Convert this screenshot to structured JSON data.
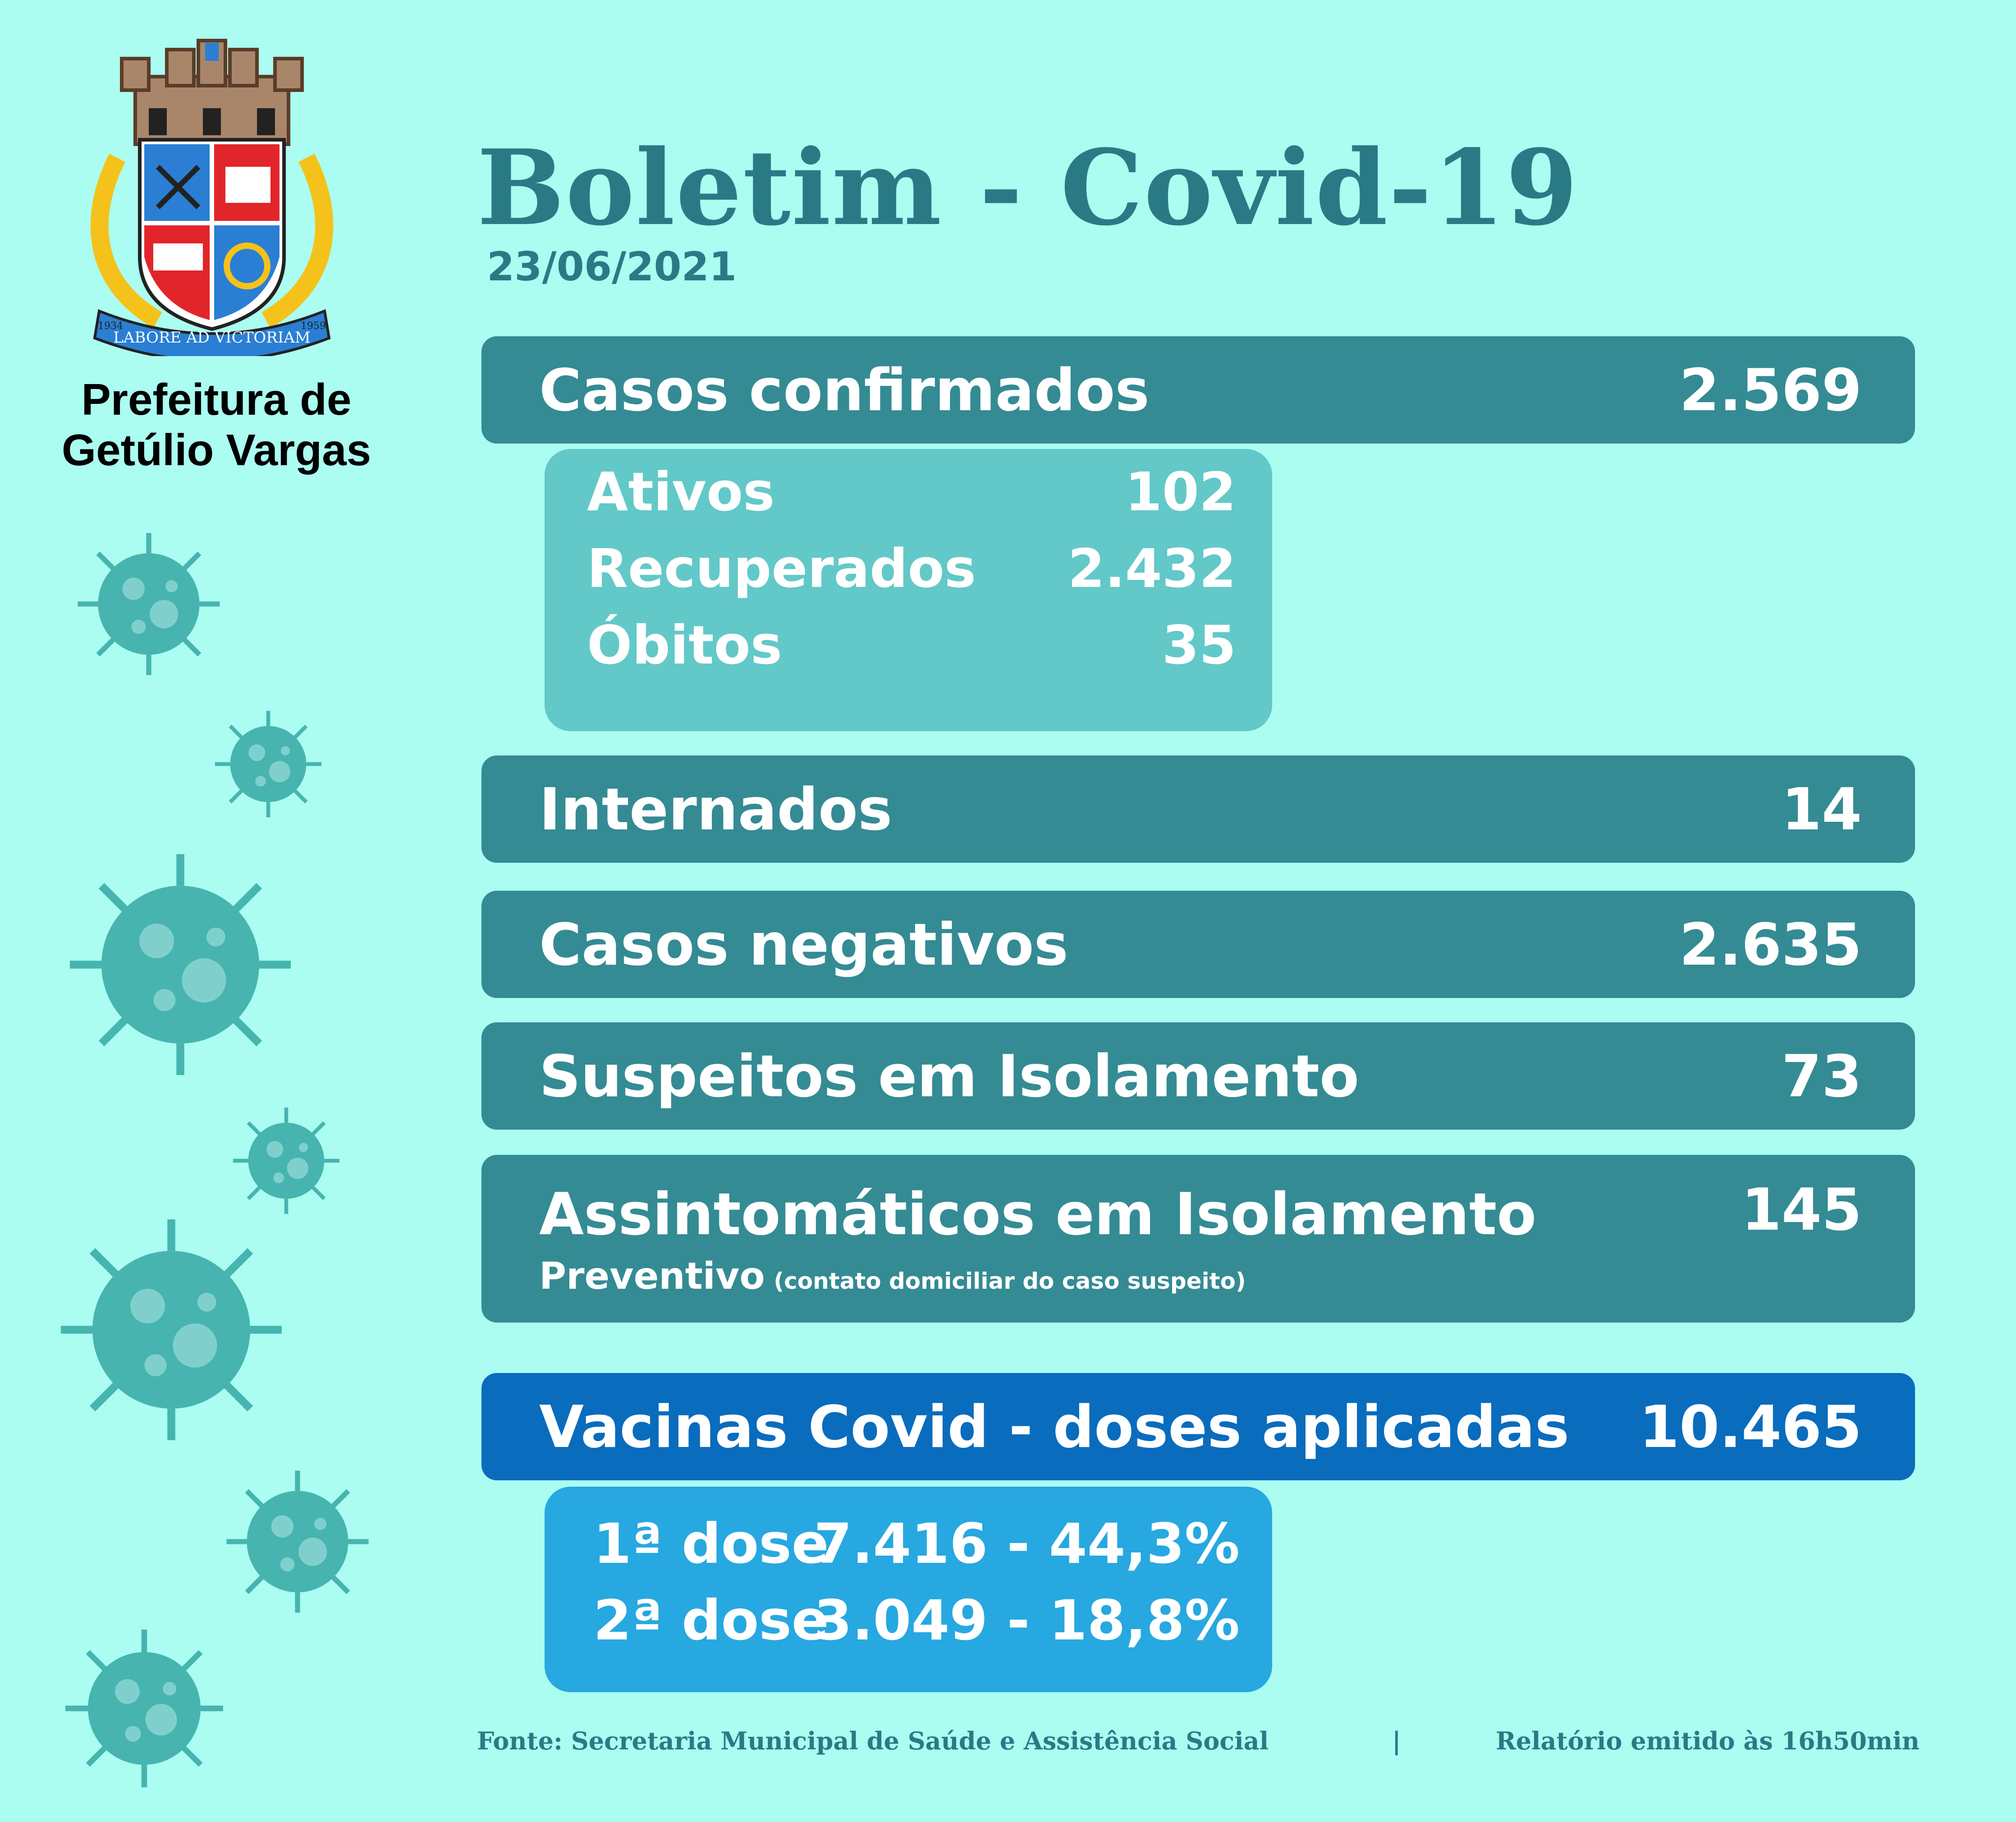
{
  "header": {
    "title": "Boletim - Covid-19",
    "date": "23/06/2021",
    "organization_line1": "Prefeitura de",
    "organization_line2": "Getúlio Vargas"
  },
  "crest": {
    "motto": "LABORE AD VICTORIAM",
    "year_left": "1934",
    "year_right": "1959",
    "colors": {
      "blue": "#2a7fd4",
      "red": "#e2252b",
      "gold": "#f5c21b",
      "stone": "#a9866a"
    }
  },
  "casos_confirmados": {
    "label": "Casos confirmados",
    "value": "2.569",
    "breakdown": [
      {
        "label": "Ativos",
        "value": "102"
      },
      {
        "label": "Recuperados",
        "value": "2.432"
      },
      {
        "label": "Óbitos",
        "value": "35"
      }
    ]
  },
  "internados": {
    "label": "Internados",
    "value": "14"
  },
  "casos_negativos": {
    "label": "Casos negativos",
    "value": "2.635"
  },
  "suspeitos": {
    "label": "Suspeitos em Isolamento",
    "value": "73"
  },
  "assintomaticos": {
    "label": "Assintomáticos em Isolamento",
    "sublabel": "Preventivo",
    "note": "(contato domiciliar do caso suspeito)",
    "value": "145"
  },
  "vacinas": {
    "label": "Vacinas Covid - doses aplicadas",
    "value": "10.465",
    "doses": [
      {
        "label": "1ª dose",
        "value": "7.416 - 44,3%"
      },
      {
        "label": "2ª dose",
        "value": "3.049 - 18,8%"
      }
    ]
  },
  "footer": {
    "source": "Fonte: Secretaria Municipal de Saúde e Assistência Social",
    "separator": "|",
    "report_time": "Relatório emitido às 16h50min"
  },
  "colors": {
    "background": "#aafdf0",
    "bar": "#348b94",
    "sub_box": "#63c8c8",
    "vaccine_bar": "#0a6cbd",
    "vaccine_sub": "#27a8e0",
    "title": "#2a7a86",
    "virus": "#47b4b0"
  },
  "icons": [
    "municipal-crest",
    "virus-icon"
  ]
}
